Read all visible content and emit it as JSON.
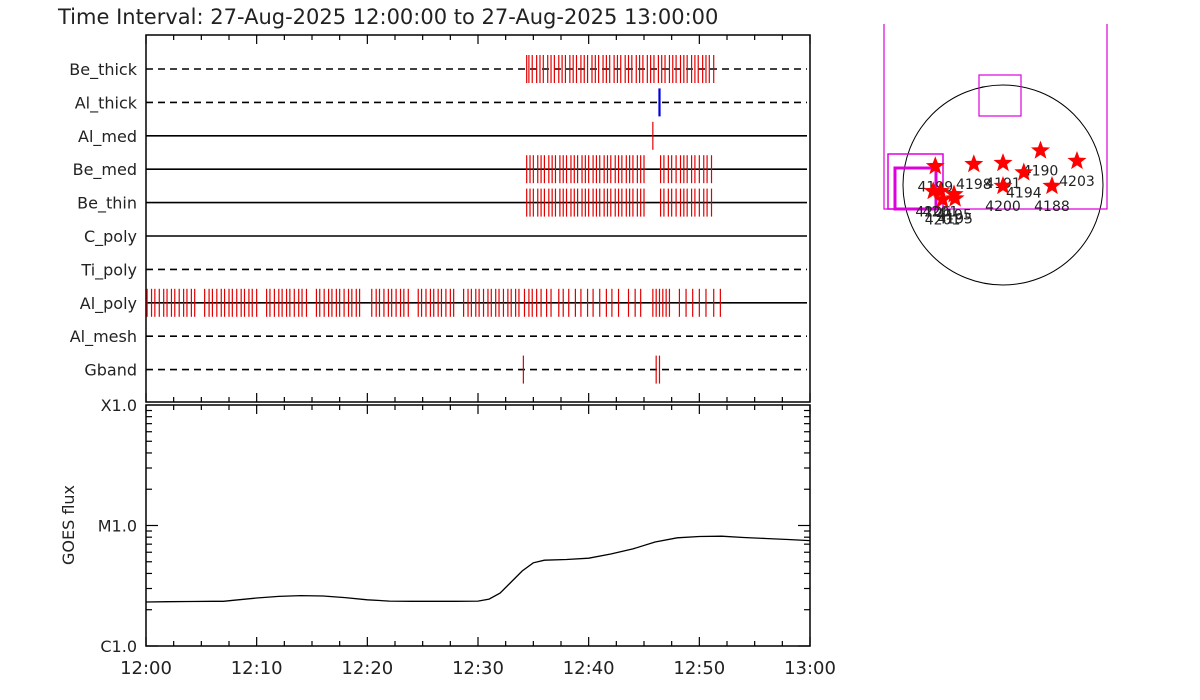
{
  "title": "Time Interval: 27-Aug-2025 12:00:00 to 27-Aug-2025 13:00:00",
  "colors": {
    "event": "#e00000",
    "highlight": "#0000dd",
    "axis": "#000000",
    "fov": "#dd00dd",
    "star": "#ff0000"
  },
  "chart_data": [
    {
      "type": "timeline",
      "x_unit": "minutes after 12:00",
      "xlim": [
        0,
        60
      ],
      "channels": [
        {
          "name": "Be_thick",
          "line": "dashed",
          "events": [
            34.4,
            34.6,
            34.9,
            35.3,
            35.6,
            35.9,
            36.3,
            36.6,
            36.9,
            37.3,
            37.6,
            37.9,
            38.3,
            38.6,
            38.9,
            39.3,
            39.6,
            39.9,
            40.3,
            40.6,
            40.9,
            41.3,
            41.6,
            41.9,
            42.3,
            42.6,
            42.9,
            43.3,
            43.6,
            43.9,
            44.3,
            44.6,
            44.9,
            45.3,
            45.6,
            45.9,
            46.3,
            46.6,
            46.9,
            47.3,
            47.6,
            47.9,
            48.3,
            48.6,
            48.9,
            49.3,
            49.6,
            49.9,
            50.3,
            50.6,
            50.9,
            51.3
          ],
          "highlight": []
        },
        {
          "name": "Al_thick",
          "line": "dashed",
          "events": [],
          "highlight": [
            46.4
          ]
        },
        {
          "name": "Al_med",
          "line": "solid",
          "events": [
            45.8
          ],
          "highlight": []
        },
        {
          "name": "Be_med",
          "line": "solid",
          "events": [
            34.4,
            34.7,
            35.0,
            35.4,
            35.7,
            36.0,
            36.4,
            36.7,
            37.0,
            37.4,
            37.7,
            38.0,
            38.4,
            38.7,
            39.0,
            39.4,
            39.7,
            40.0,
            40.4,
            40.7,
            41.0,
            41.4,
            41.7,
            42.0,
            42.4,
            42.7,
            43.0,
            43.4,
            43.7,
            44.0,
            44.4,
            44.7,
            45.0,
            46.5,
            46.8,
            47.2,
            47.5,
            47.9,
            48.3,
            48.6,
            48.9,
            49.3,
            49.6,
            50.0,
            50.4,
            50.7,
            51.1
          ],
          "highlight": []
        },
        {
          "name": "Be_thin",
          "line": "solid",
          "events": [
            34.4,
            34.7,
            35.0,
            35.4,
            35.7,
            36.0,
            36.4,
            36.7,
            37.0,
            37.4,
            37.7,
            38.0,
            38.4,
            38.7,
            39.0,
            39.4,
            39.7,
            40.0,
            40.4,
            40.7,
            41.0,
            41.4,
            41.7,
            42.0,
            42.4,
            42.7,
            43.0,
            43.4,
            43.7,
            44.0,
            44.4,
            44.7,
            45.0,
            46.5,
            46.8,
            47.2,
            47.5,
            47.9,
            48.3,
            48.6,
            48.9,
            49.3,
            49.6,
            50.0,
            50.4,
            50.7,
            51.1
          ],
          "highlight": []
        },
        {
          "name": "C_poly",
          "line": "solid",
          "events": [],
          "highlight": []
        },
        {
          "name": "Ti_poly",
          "line": "dashed",
          "events": [],
          "highlight": []
        },
        {
          "name": "Al_poly",
          "line": "solid",
          "events": [
            0.1,
            0.5,
            0.8,
            1.2,
            1.6,
            1.9,
            2.3,
            2.6,
            3.0,
            3.4,
            3.7,
            4.1,
            4.4,
            5.3,
            5.7,
            6.0,
            6.4,
            6.8,
            7.1,
            7.5,
            7.8,
            8.2,
            8.6,
            8.9,
            9.3,
            9.6,
            10.0,
            10.9,
            11.2,
            11.6,
            12.0,
            12.3,
            12.7,
            13.0,
            13.4,
            13.8,
            14.1,
            14.5,
            15.4,
            15.7,
            16.1,
            16.5,
            16.8,
            17.2,
            17.5,
            17.9,
            18.3,
            18.6,
            19.0,
            19.3,
            20.4,
            20.8,
            21.1,
            21.5,
            21.9,
            22.2,
            22.6,
            23.0,
            23.3,
            23.7,
            24.6,
            24.9,
            25.3,
            25.7,
            26.0,
            26.4,
            26.7,
            27.1,
            27.5,
            27.8,
            28.7,
            29.1,
            29.4,
            29.8,
            30.1,
            30.5,
            30.9,
            31.2,
            31.6,
            31.9,
            32.3,
            32.7,
            33.0,
            33.4,
            33.7,
            34.2,
            34.6,
            34.9,
            35.3,
            35.7,
            36.2,
            36.6,
            37.3,
            37.7,
            38.2,
            38.8,
            39.3,
            39.9,
            40.4,
            41.0,
            41.6,
            42.1,
            42.7,
            43.6,
            44.2,
            44.7,
            45.8,
            46.1,
            46.4,
            46.7,
            47.0,
            47.3,
            48.2,
            48.8,
            49.4,
            50.0,
            50.6,
            51.3,
            51.9
          ],
          "highlight": []
        },
        {
          "name": "Al_mesh",
          "line": "dashed",
          "events": [],
          "highlight": []
        },
        {
          "name": "Gband",
          "line": "dashed",
          "events": [
            34.1,
            46.1,
            46.4
          ],
          "highlight": []
        }
      ]
    },
    {
      "type": "line",
      "ylabel": "GOES flux",
      "yscale": "log",
      "y_tick_labels": [
        "C1.0",
        "M1.0",
        "X1.0"
      ],
      "y_tick_values": [
        1e-06,
        1e-05,
        0.0001
      ],
      "ylim": [
        1e-06,
        0.0001
      ],
      "xlim": [
        0,
        60
      ],
      "x_tick_labels": [
        "12:00",
        "12:10",
        "12:20",
        "12:30",
        "12:40",
        "12:50",
        "13:00"
      ],
      "x_tick_values": [
        0,
        10,
        20,
        30,
        40,
        50,
        60
      ],
      "x": [
        0,
        2,
        4,
        6,
        7,
        8,
        10,
        12,
        14,
        16,
        18,
        20,
        22,
        24,
        26,
        28,
        30,
        31,
        32,
        33,
        34,
        35,
        36,
        38,
        40,
        42,
        44,
        46,
        48,
        50,
        52,
        54,
        56,
        58,
        60
      ],
      "y": [
        2.32e-06,
        2.33e-06,
        2.34e-06,
        2.35e-06,
        2.35e-06,
        2.4e-06,
        2.5e-06,
        2.58e-06,
        2.62e-06,
        2.6e-06,
        2.52e-06,
        2.42e-06,
        2.36e-06,
        2.35e-06,
        2.35e-06,
        2.35e-06,
        2.36e-06,
        2.45e-06,
        2.75e-06,
        3.4e-06,
        4.2e-06,
        4.9e-06,
        5.15e-06,
        5.22e-06,
        5.35e-06,
        5.8e-06,
        6.4e-06,
        7.3e-06,
        7.9e-06,
        8.1e-06,
        8.15e-06,
        7.95e-06,
        7.8e-06,
        7.65e-06,
        7.5e-06
      ]
    },
    {
      "type": "scatter",
      "series": [
        {
          "labels": [
            "4199",
            "4198",
            "4191",
            "4190",
            "4203",
            "4194",
            "4200",
            "4188",
            "4206",
            "4201",
            "4195",
            "4195",
            "4201"
          ],
          "x": [
            -650,
            -280,
            0,
            360,
            710,
            200,
            0,
            470,
            -670,
            -580,
            -470,
            -460,
            -600
          ],
          "y": [
            180,
            200,
            210,
            330,
            230,
            120,
            -10,
            -10,
            -60,
            -140,
            -90,
            -130,
            -60
          ]
        }
      ]
    }
  ]
}
